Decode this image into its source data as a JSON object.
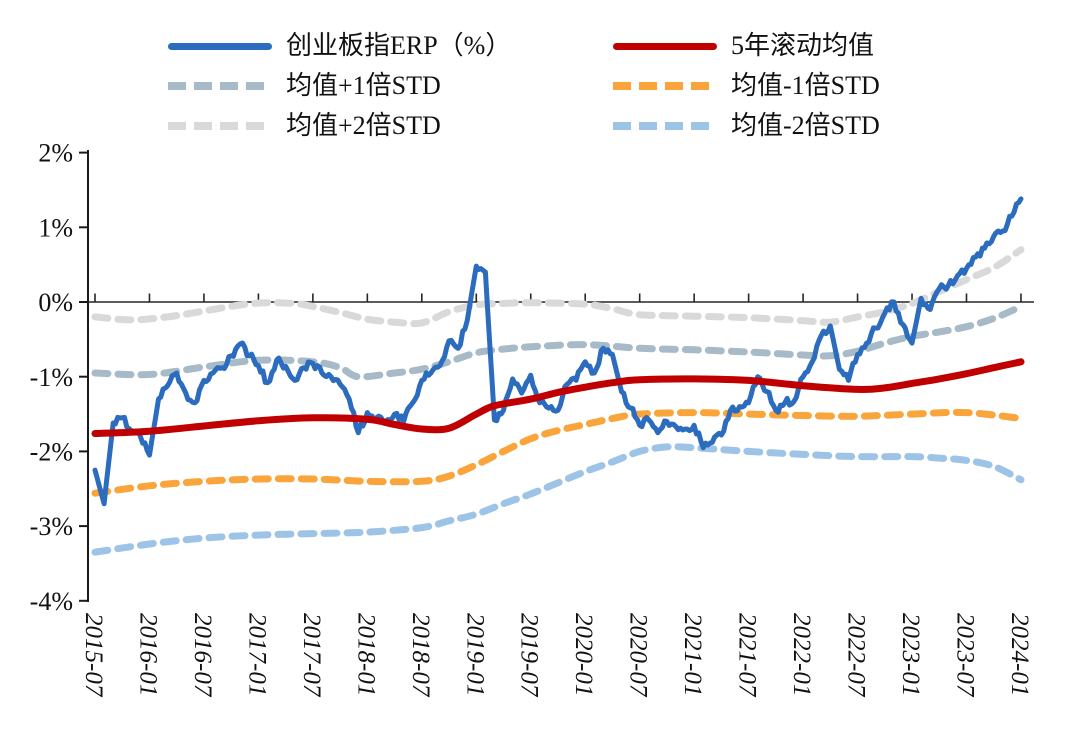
{
  "chart_data": {
    "type": "line",
    "title": "",
    "x_unit": "month",
    "x_range": [
      "2015-07",
      "2024-01"
    ],
    "x_months_total": 103,
    "x_tick_month_indices": [
      0,
      6,
      12,
      18,
      24,
      30,
      36,
      42,
      48,
      54,
      60,
      66,
      72,
      78,
      84,
      90,
      96,
      102
    ],
    "x_tick_labels": [
      "2015-07",
      "2016-01",
      "2016-07",
      "2017-01",
      "2017-07",
      "2018-01",
      "2018-07",
      "2019-01",
      "2019-07",
      "2020-01",
      "2020-07",
      "2021-01",
      "2021-07",
      "2022-01",
      "2022-07",
      "2023-01",
      "2023-07",
      "2024-01"
    ],
    "y_tick_values": [
      2,
      1,
      0,
      -1,
      -2,
      -3,
      -4
    ],
    "y_tick_labels": [
      "2%",
      "1%",
      "0%",
      "-1%",
      "-2%",
      "-3%",
      "-4%"
    ],
    "ylim": [
      -4,
      2
    ],
    "grid": false,
    "zero_axis_line": true,
    "legend_position": "top",
    "series": [
      {
        "id": "erp",
        "name": "创业板指ERP（%）",
        "color": "#2B6CBE",
        "dash": false,
        "width": 5,
        "values": [
          -2.25,
          -2.7,
          -1.62,
          -1.55,
          -1.72,
          -1.8,
          -2.05,
          -1.3,
          -1.12,
          -0.95,
          -1.22,
          -1.35,
          -1.05,
          -0.95,
          -0.88,
          -0.72,
          -0.56,
          -0.72,
          -0.85,
          -1.08,
          -0.78,
          -0.86,
          -1.05,
          -0.88,
          -0.82,
          -0.95,
          -1.0,
          -1.1,
          -1.3,
          -1.75,
          -1.48,
          -1.55,
          -1.6,
          -1.5,
          -1.6,
          -1.35,
          -1.05,
          -0.95,
          -0.85,
          -0.52,
          -0.62,
          -0.25,
          0.48,
          0.4,
          -1.58,
          -1.45,
          -1.03,
          -1.22,
          -0.98,
          -1.35,
          -1.42,
          -1.45,
          -1.1,
          -1.05,
          -0.8,
          -0.95,
          -0.62,
          -0.7,
          -1.2,
          -1.42,
          -1.65,
          -1.58,
          -1.75,
          -1.6,
          -1.67,
          -1.7,
          -1.65,
          -1.95,
          -1.88,
          -1.78,
          -1.45,
          -1.4,
          -1.35,
          -1.0,
          -1.2,
          -1.45,
          -1.35,
          -1.33,
          -1.0,
          -0.8,
          -0.45,
          -0.32,
          -0.9,
          -1.05,
          -0.7,
          -0.55,
          -0.35,
          -0.15,
          0.0,
          -0.3,
          -0.55,
          0.05,
          -0.1,
          0.18,
          0.22,
          0.35,
          0.45,
          0.6,
          0.72,
          0.88,
          0.95,
          1.15,
          1.38
        ]
      },
      {
        "id": "mean-5y",
        "name": "5年滚动均值",
        "color": "#C00000",
        "dash": false,
        "width": 7,
        "anchors": [
          [
            0,
            -1.76
          ],
          [
            6,
            -1.73
          ],
          [
            12,
            -1.66
          ],
          [
            18,
            -1.59
          ],
          [
            24,
            -1.55
          ],
          [
            30,
            -1.57
          ],
          [
            33,
            -1.64
          ],
          [
            36,
            -1.7
          ],
          [
            39,
            -1.69
          ],
          [
            42,
            -1.5
          ],
          [
            44,
            -1.39
          ],
          [
            48,
            -1.3
          ],
          [
            51,
            -1.21
          ],
          [
            54,
            -1.14
          ],
          [
            57,
            -1.08
          ],
          [
            60,
            -1.04
          ],
          [
            66,
            -1.03
          ],
          [
            72,
            -1.05
          ],
          [
            78,
            -1.12
          ],
          [
            84,
            -1.17
          ],
          [
            87,
            -1.15
          ],
          [
            90,
            -1.09
          ],
          [
            93,
            -1.03
          ],
          [
            96,
            -0.96
          ],
          [
            99,
            -0.88
          ],
          [
            102,
            -0.8
          ]
        ]
      },
      {
        "id": "mean-plus-1std",
        "name": "均值+1倍STD",
        "color": "#A6BAC7",
        "dash": true,
        "width": 7,
        "anchors": [
          [
            0,
            -0.95
          ],
          [
            6,
            -0.97
          ],
          [
            12,
            -0.87
          ],
          [
            18,
            -0.78
          ],
          [
            24,
            -0.8
          ],
          [
            27,
            -0.88
          ],
          [
            29,
            -1.0
          ],
          [
            33,
            -0.95
          ],
          [
            36,
            -0.9
          ],
          [
            39,
            -0.8
          ],
          [
            42,
            -0.68
          ],
          [
            45,
            -0.63
          ],
          [
            48,
            -0.6
          ],
          [
            54,
            -0.57
          ],
          [
            60,
            -0.62
          ],
          [
            66,
            -0.64
          ],
          [
            72,
            -0.67
          ],
          [
            78,
            -0.71
          ],
          [
            81,
            -0.72
          ],
          [
            84,
            -0.66
          ],
          [
            87,
            -0.55
          ],
          [
            90,
            -0.46
          ],
          [
            93,
            -0.4
          ],
          [
            96,
            -0.33
          ],
          [
            99,
            -0.22
          ],
          [
            102,
            -0.06
          ]
        ]
      },
      {
        "id": "mean-minus-1std",
        "name": "均值-1倍STD",
        "color": "#FAA53C",
        "dash": true,
        "width": 7,
        "anchors": [
          [
            0,
            -2.56
          ],
          [
            6,
            -2.46
          ],
          [
            12,
            -2.4
          ],
          [
            18,
            -2.37
          ],
          [
            24,
            -2.37
          ],
          [
            30,
            -2.4
          ],
          [
            36,
            -2.4
          ],
          [
            39,
            -2.33
          ],
          [
            42,
            -2.18
          ],
          [
            45,
            -2.0
          ],
          [
            48,
            -1.83
          ],
          [
            51,
            -1.72
          ],
          [
            54,
            -1.64
          ],
          [
            57,
            -1.56
          ],
          [
            60,
            -1.5
          ],
          [
            66,
            -1.48
          ],
          [
            72,
            -1.5
          ],
          [
            78,
            -1.52
          ],
          [
            84,
            -1.53
          ],
          [
            90,
            -1.5
          ],
          [
            96,
            -1.48
          ],
          [
            102,
            -1.56
          ]
        ]
      },
      {
        "id": "mean-plus-2std",
        "name": "均值+2倍STD",
        "color": "#D9D9D9",
        "dash": true,
        "width": 7,
        "anchors": [
          [
            0,
            -0.2
          ],
          [
            4,
            -0.24
          ],
          [
            8,
            -0.2
          ],
          [
            12,
            -0.12
          ],
          [
            16,
            -0.04
          ],
          [
            19,
            -0.01
          ],
          [
            22,
            -0.02
          ],
          [
            24,
            -0.06
          ],
          [
            27,
            -0.14
          ],
          [
            30,
            -0.23
          ],
          [
            33,
            -0.27
          ],
          [
            36,
            -0.28
          ],
          [
            39,
            -0.13
          ],
          [
            42,
            -0.04
          ],
          [
            45,
            -0.02
          ],
          [
            48,
            -0.01
          ],
          [
            54,
            -0.03
          ],
          [
            57,
            -0.09
          ],
          [
            60,
            -0.17
          ],
          [
            66,
            -0.19
          ],
          [
            72,
            -0.21
          ],
          [
            78,
            -0.25
          ],
          [
            81,
            -0.27
          ],
          [
            84,
            -0.2
          ],
          [
            87,
            -0.13
          ],
          [
            90,
            -0.02
          ],
          [
            93,
            0.14
          ],
          [
            96,
            0.3
          ],
          [
            99,
            0.46
          ],
          [
            102,
            0.7
          ]
        ]
      },
      {
        "id": "mean-minus-2std",
        "name": "均值-2倍STD",
        "color": "#9DC3E6",
        "dash": true,
        "width": 7,
        "anchors": [
          [
            0,
            -3.35
          ],
          [
            6,
            -3.24
          ],
          [
            12,
            -3.16
          ],
          [
            18,
            -3.12
          ],
          [
            24,
            -3.1
          ],
          [
            30,
            -3.08
          ],
          [
            36,
            -3.02
          ],
          [
            39,
            -2.93
          ],
          [
            42,
            -2.84
          ],
          [
            45,
            -2.7
          ],
          [
            48,
            -2.57
          ],
          [
            51,
            -2.42
          ],
          [
            54,
            -2.27
          ],
          [
            57,
            -2.14
          ],
          [
            60,
            -2.0
          ],
          [
            63,
            -1.94
          ],
          [
            66,
            -1.95
          ],
          [
            72,
            -2.0
          ],
          [
            78,
            -2.04
          ],
          [
            84,
            -2.07
          ],
          [
            90,
            -2.07
          ],
          [
            93,
            -2.09
          ],
          [
            96,
            -2.12
          ],
          [
            99,
            -2.2
          ],
          [
            102,
            -2.38
          ]
        ]
      }
    ]
  },
  "legend": {
    "columns": 2,
    "order": [
      "erp",
      "mean-5y",
      "mean-plus-1std",
      "mean-minus-1std",
      "mean-plus-2std",
      "mean-minus-2std"
    ]
  }
}
